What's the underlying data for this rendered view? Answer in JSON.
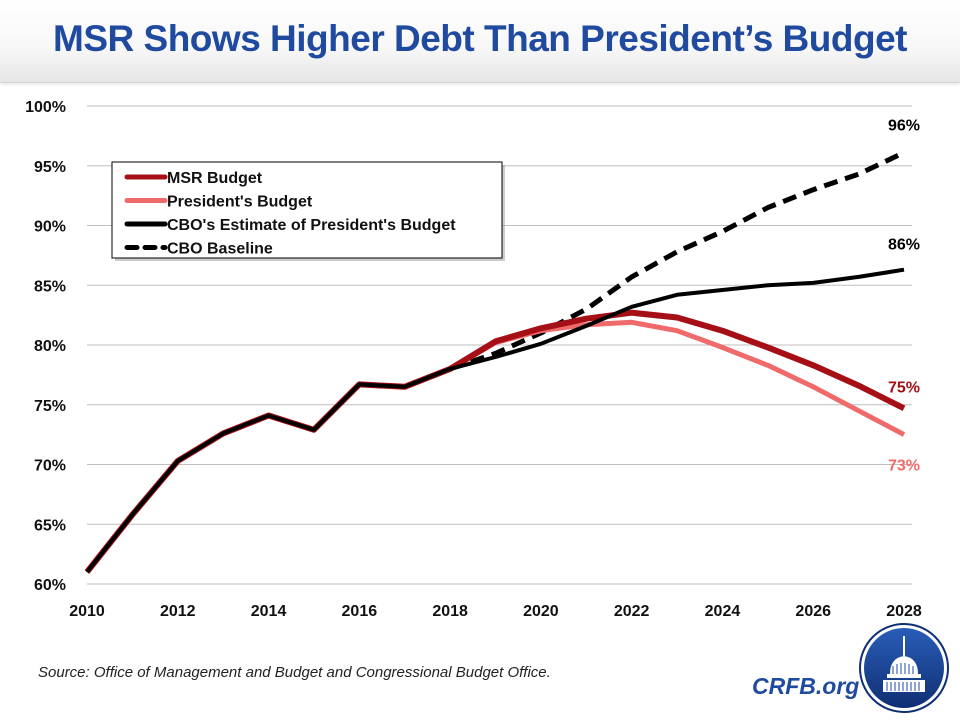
{
  "header": {
    "title": "MSR Shows Higher Debt Than President’s Budget"
  },
  "footer": {
    "source": "Source: Office of Management and Budget and Congressional Budget Office.",
    "brand": "CRFB.org",
    "logo_icon": "capitol-dome-logo-icon"
  },
  "colors": {
    "title": "#1f4aa0",
    "msr": "#a50f15",
    "president": "#ef6b6b",
    "cbo_estimate": "#000000",
    "cbo_baseline": "#000000",
    "gridline": "#bfbfbf"
  },
  "chart_data": {
    "type": "line",
    "title": "MSR Shows Higher Debt Than President’s Budget",
    "xlabel": "",
    "ylabel": "",
    "x": [
      2010,
      2011,
      2012,
      2013,
      2014,
      2015,
      2016,
      2017,
      2018,
      2019,
      2020,
      2021,
      2022,
      2023,
      2024,
      2025,
      2026,
      2027,
      2028
    ],
    "x_tick_labels": [
      "2010",
      "2012",
      "2014",
      "2016",
      "2018",
      "2020",
      "2022",
      "2024",
      "2026",
      "2028"
    ],
    "x_ticks": [
      2010,
      2012,
      2014,
      2016,
      2018,
      2020,
      2022,
      2024,
      2026,
      2028
    ],
    "xlim": [
      2010,
      2028
    ],
    "ylim": [
      60,
      100
    ],
    "y_ticks": [
      60,
      65,
      70,
      75,
      80,
      85,
      90,
      95,
      100
    ],
    "y_tick_labels": [
      "60%",
      "65%",
      "70%",
      "75%",
      "80%",
      "85%",
      "90%",
      "95%",
      "100%"
    ],
    "grid": true,
    "legend_position": "top-left",
    "series": [
      {
        "key": "msr",
        "name": "MSR Budget",
        "style": "solid",
        "values": [
          61.0,
          65.8,
          70.3,
          72.6,
          74.1,
          72.9,
          76.7,
          76.5,
          78.0,
          80.3,
          81.4,
          82.2,
          82.7,
          82.3,
          81.2,
          79.8,
          78.3,
          76.6,
          74.7
        ],
        "end_label": "75%"
      },
      {
        "key": "president",
        "name": "President's Budget",
        "style": "solid",
        "values": [
          61.0,
          65.8,
          70.3,
          72.6,
          74.1,
          72.9,
          76.7,
          76.5,
          78.0,
          80.2,
          81.2,
          81.7,
          81.9,
          81.2,
          79.8,
          78.3,
          76.5,
          74.5,
          72.5
        ],
        "end_label": "73%"
      },
      {
        "key": "cbo_estimate",
        "name": "CBO's Estimate of President's Budget",
        "style": "solid",
        "values": [
          61.0,
          65.8,
          70.3,
          72.6,
          74.1,
          72.9,
          76.7,
          76.5,
          78.0,
          79.0,
          80.1,
          81.6,
          83.2,
          84.2,
          84.6,
          85.0,
          85.2,
          85.7,
          86.3
        ],
        "end_label": "86%"
      },
      {
        "key": "cbo_baseline",
        "name": "CBO Baseline",
        "style": "dashed",
        "values": [
          null,
          null,
          null,
          null,
          null,
          null,
          null,
          null,
          78.0,
          79.3,
          81.0,
          83.0,
          85.7,
          87.8,
          89.5,
          91.5,
          93.0,
          94.3,
          96.1
        ],
        "end_label": "96%"
      }
    ]
  }
}
